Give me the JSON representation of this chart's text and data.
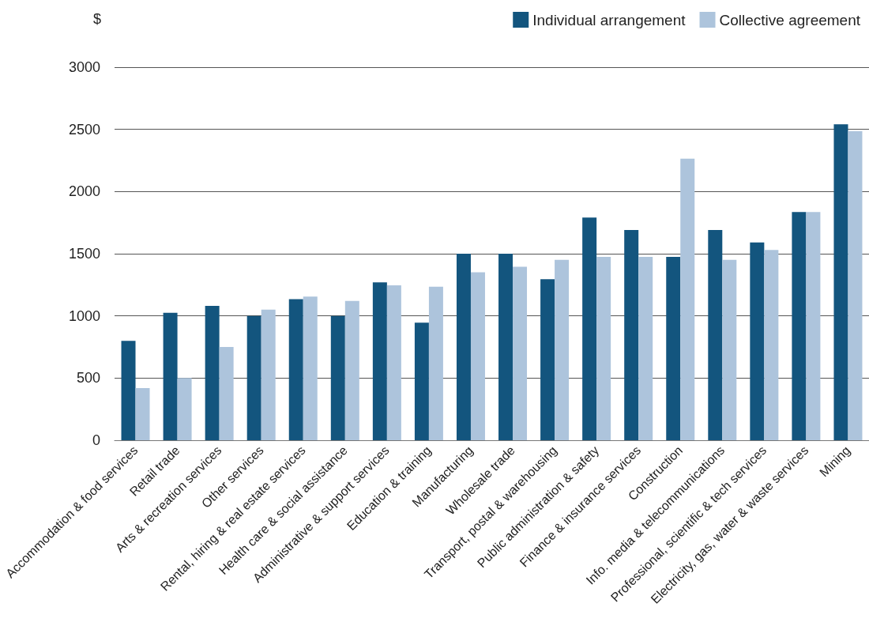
{
  "chart_data": {
    "type": "bar",
    "ylabel": "$",
    "categories": [
      "Accommodation & food services",
      "Retail trade",
      "Arts & recreation services",
      "Other services",
      "Rental, hiring & real estate services",
      "Health care & social assistance",
      "Administrative & support services",
      "Education & training",
      "Manufacturing",
      "Wholesale trade",
      "Transport, postal & warehousing",
      "Public administration & safety",
      "Finance & insurance services",
      "Construction",
      "Info. media & telecommunications",
      "Professional, scientific & tech services",
      "Electricity, gas, water & waste services",
      "Mining"
    ],
    "series": [
      {
        "name": "Individual arrangement",
        "color": "#13557e",
        "values": [
          800,
          1025,
          1080,
          1000,
          1135,
          1000,
          1270,
          945,
          1500,
          1500,
          1295,
          1790,
          1690,
          1475,
          1690,
          1590,
          1835,
          2540
        ]
      },
      {
        "name": "Collective agreement",
        "color": "#adc4dc",
        "values": [
          420,
          500,
          750,
          1050,
          1155,
          1120,
          1245,
          1235,
          1350,
          1395,
          1450,
          1475,
          1475,
          2265,
          1450,
          1530,
          1835,
          2485
        ]
      }
    ],
    "ylim": [
      0,
      3000
    ],
    "yticks": [
      0,
      500,
      1000,
      1500,
      2000,
      2500,
      3000
    ],
    "grid": "y",
    "legend": "top right"
  }
}
